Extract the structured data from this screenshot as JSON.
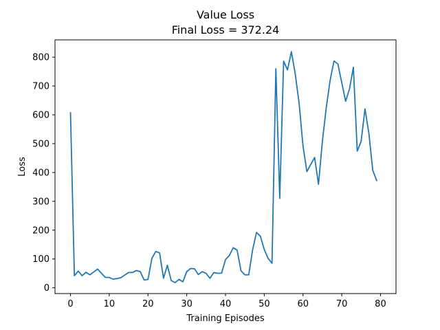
{
  "chart_data": {
    "type": "line",
    "title": "Value Loss",
    "subtitle": "Final Loss = 372.24",
    "xlabel": "Training Episodes",
    "ylabel": "Loss",
    "xlim": [
      -4,
      84
    ],
    "ylim": [
      -20,
      860
    ],
    "xticks": [
      0,
      10,
      20,
      30,
      40,
      50,
      60,
      70,
      80
    ],
    "yticks": [
      0,
      100,
      200,
      300,
      400,
      500,
      600,
      700,
      800
    ],
    "grid": false,
    "legend": false,
    "series": [
      {
        "color": "#1f77b4",
        "x": [
          0,
          1,
          2,
          3,
          4,
          5,
          6,
          7,
          8,
          9,
          10,
          11,
          12,
          13,
          14,
          15,
          16,
          17,
          18,
          19,
          20,
          21,
          22,
          23,
          24,
          25,
          26,
          27,
          28,
          29,
          30,
          31,
          32,
          33,
          34,
          35,
          36,
          37,
          38,
          39,
          40,
          41,
          42,
          43,
          44,
          45,
          46,
          47,
          48,
          49,
          50,
          51,
          52,
          53,
          54,
          55,
          56,
          57,
          58,
          59,
          60,
          61,
          62,
          63,
          64,
          65,
          66,
          67,
          68,
          69,
          70,
          71,
          72,
          73,
          74,
          75,
          76,
          77,
          78,
          79
        ],
        "y": [
          607,
          42,
          58,
          42,
          54,
          45,
          55,
          65,
          50,
          36,
          36,
          30,
          32,
          35,
          44,
          53,
          53,
          60,
          56,
          27,
          29,
          102,
          126,
          121,
          33,
          78,
          25,
          18,
          29,
          21,
          56,
          67,
          66,
          46,
          56,
          50,
          33,
          53,
          50,
          51,
          98,
          112,
          139,
          131,
          59,
          45,
          45,
          132,
          192,
          179,
          133,
          102,
          85,
          760,
          310,
          786,
          756,
          819,
          742,
          640,
          492,
          403,
          428,
          452,
          359,
          508,
          625,
          720,
          787,
          776,
          712,
          647,
          690,
          765,
          474,
          508,
          621,
          536,
          408,
          372
        ]
      }
    ]
  }
}
